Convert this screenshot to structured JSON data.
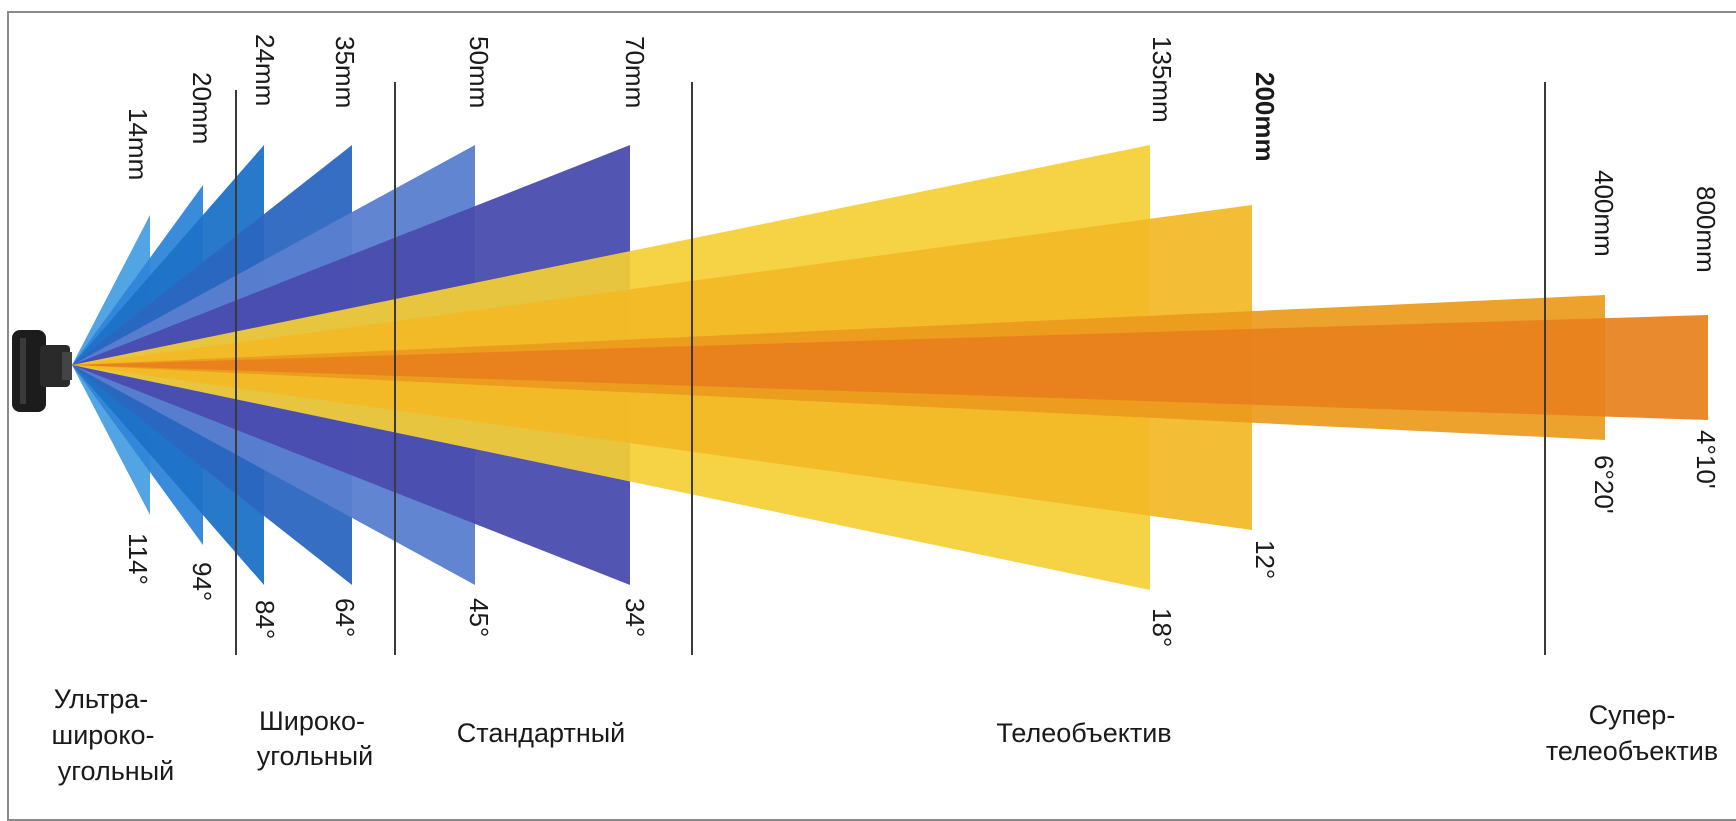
{
  "lenses": [
    {
      "focal": "14mm",
      "angle": "114°",
      "color": "#4a9fe0"
    },
    {
      "focal": "20mm",
      "angle": "94°",
      "color": "#2f86d8"
    },
    {
      "focal": "24mm",
      "angle": "84°",
      "color": "#1e72c8"
    },
    {
      "focal": "35mm",
      "angle": "64°",
      "color": "#2a66c0"
    },
    {
      "focal": "50mm",
      "angle": "45°",
      "color": "#5a7ed0"
    },
    {
      "focal": "70mm",
      "angle": "34°",
      "color": "#4a4cae"
    },
    {
      "focal": "135mm",
      "angle": "18°",
      "color": "#f5cf35"
    },
    {
      "focal": "200mm",
      "angle": "12°",
      "color": "#f2b825",
      "bold": true
    },
    {
      "focal": "400mm",
      "angle": "6°20'",
      "color": "#ec9a1c"
    },
    {
      "focal": "800mm",
      "angle": "4°10'",
      "color": "#e8801c"
    }
  ],
  "categories": [
    {
      "name": "ultra-wide",
      "lines": [
        "Ультра-",
        "широко-",
        "угольный"
      ]
    },
    {
      "name": "wide",
      "lines": [
        "Широко-",
        "угольный"
      ]
    },
    {
      "name": "standard",
      "lines": [
        "Стандартный"
      ]
    },
    {
      "name": "telephoto",
      "lines": [
        "Телеобъектив"
      ]
    },
    {
      "name": "super-telephoto",
      "lines": [
        "Супер-",
        "телеобъектив"
      ]
    }
  ],
  "colors": {
    "divider": "#3a3a3a",
    "camera": "#1c1c1c",
    "border": "#8a8a8a"
  }
}
